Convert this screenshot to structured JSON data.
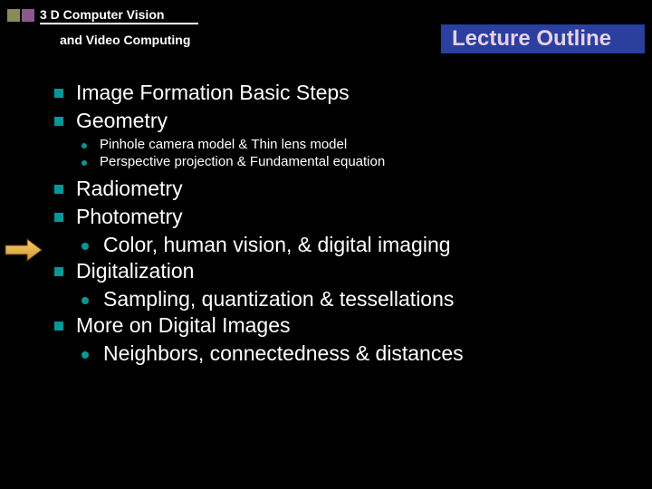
{
  "header": {
    "line1": "3 D Computer Vision",
    "line2": "and Video Computing",
    "square_colors": [
      "#8b8b5a",
      "#8b5a8b"
    ],
    "title": "Lecture Outline",
    "title_bg": "#2a3f9e",
    "title_color": "#e8d0e8"
  },
  "bullet_color": "#009999",
  "arrow": {
    "fill_top": "#ffcc66",
    "fill_bottom": "#cc9933",
    "stroke": "#5a3a1a"
  },
  "items": [
    {
      "text": "Image Formation Basic Steps",
      "subs": []
    },
    {
      "text": "Geometry",
      "subs_small": [
        "Pinhole camera model & Thin lens model",
        "Perspective projection & Fundamental equation"
      ]
    },
    {
      "text": "Radiometry",
      "subs": []
    },
    {
      "text": "Photometry",
      "subs": [
        "Color, human vision, & digital imaging"
      ]
    },
    {
      "text": "Digitalization",
      "subs": [
        "Sampling, quantization & tessellations"
      ]
    },
    {
      "text": "More on Digital Images",
      "subs": [
        "Neighbors, connectedness & distances"
      ]
    }
  ]
}
